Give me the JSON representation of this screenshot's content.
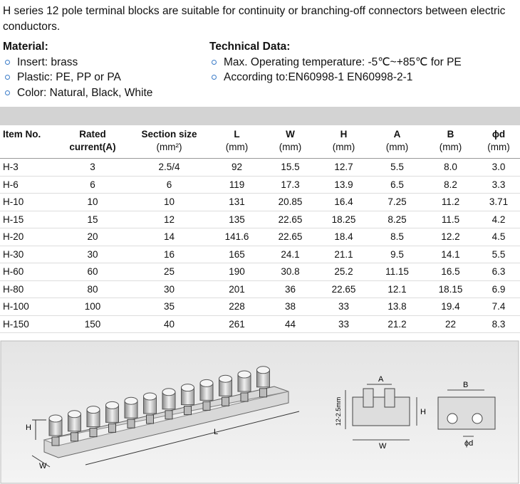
{
  "intro": "H series 12 pole terminal blocks are suitable for continuity or branching-off connectors between electric conductors.",
  "material": {
    "title": "Material:",
    "items": [
      "Insert: brass",
      "Plastic: PE, PP or PA",
      "Color: Natural, Black, White"
    ]
  },
  "technical": {
    "title": "Technical Data:",
    "items": [
      "Max. Operating temperature: -5℃~+85℃  for  PE",
      "According to:EN60998-1   EN60998-2-1"
    ]
  },
  "table": {
    "header": [
      [
        "Item No."
      ],
      [
        "Rated",
        "current(A)"
      ],
      [
        "Section size",
        "(mm²)"
      ],
      [
        "L",
        "(mm)"
      ],
      [
        "W",
        "(mm)"
      ],
      [
        "H",
        "(mm)"
      ],
      [
        "A",
        "(mm)"
      ],
      [
        "B",
        "(mm)"
      ],
      [
        "ϕd",
        "(mm)"
      ]
    ],
    "rows": [
      [
        "H-3",
        "3",
        "2.5/4",
        "92",
        "15.5",
        "12.7",
        "5.5",
        "8.0",
        "3.0"
      ],
      [
        "H-6",
        "6",
        "6",
        "119",
        "17.3",
        "13.9",
        "6.5",
        "8.2",
        "3.3"
      ],
      [
        "H-10",
        "10",
        "10",
        "131",
        "20.85",
        "16.4",
        "7.25",
        "11.2",
        "3.71"
      ],
      [
        "H-15",
        "15",
        "12",
        "135",
        "22.65",
        "18.25",
        "8.25",
        "11.5",
        "4.2"
      ],
      [
        "H-20",
        "20",
        "14",
        "141.6",
        "22.65",
        "18.4",
        "8.5",
        "12.2",
        "4.5"
      ],
      [
        "H-30",
        "30",
        "16",
        "165",
        "24.1",
        "21.1",
        "9.5",
        "14.1",
        "5.5"
      ],
      [
        "H-60",
        "60",
        "25",
        "190",
        "30.8",
        "25.2",
        "11.15",
        "16.5",
        "6.3"
      ],
      [
        "H-80",
        "80",
        "30",
        "201",
        "36",
        "22.65",
        "12.1",
        "18.15",
        "6.9"
      ],
      [
        "H-100",
        "100",
        "35",
        "228",
        "38",
        "33",
        "13.8",
        "19.4",
        "7.4"
      ],
      [
        "H-150",
        "150",
        "40",
        "261",
        "44",
        "33",
        "21.2",
        "22",
        "8.3"
      ]
    ]
  },
  "diagram": {
    "labels": [
      "H",
      "L",
      "W",
      "A",
      "H",
      "12-2.5mm",
      "W",
      "B",
      "ϕd"
    ]
  }
}
